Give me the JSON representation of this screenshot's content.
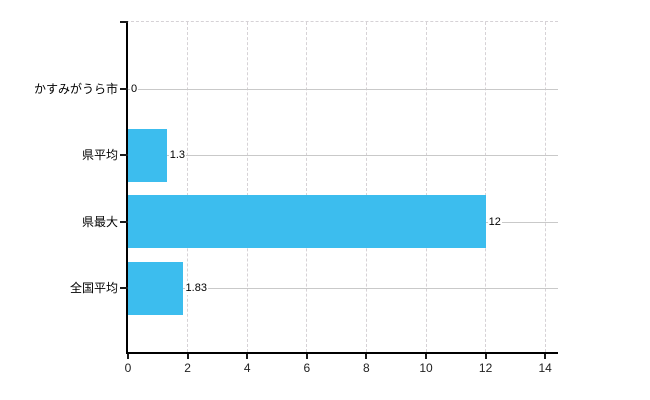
{
  "chart_data": {
    "type": "bar",
    "orientation": "horizontal",
    "title": "",
    "xlabel": "",
    "ylabel": "",
    "categories": [
      "かすみがうら市",
      "県平均",
      "県最大",
      "全国平均"
    ],
    "values": [
      0,
      1.3,
      12,
      1.83
    ],
    "value_labels": [
      "0",
      "1.3",
      "12",
      "1.83"
    ],
    "x_tick_labels": [
      "0",
      "2",
      "4",
      "6",
      "8",
      "10",
      "12",
      "14"
    ],
    "x_tick_values": [
      0,
      2,
      4,
      6,
      8,
      10,
      12,
      14
    ],
    "xlim": [
      0,
      14.4
    ],
    "grid": true,
    "legend": false,
    "colors": {
      "bar": "#3cbdee",
      "axis": "#000000",
      "vertical_gridline": "#d6d2d6",
      "horizontal_gridline": "#c9c9c9",
      "tick_label": "#222222",
      "category_label": "#000000",
      "value_label": "#000000",
      "background": "#ffffff"
    }
  }
}
